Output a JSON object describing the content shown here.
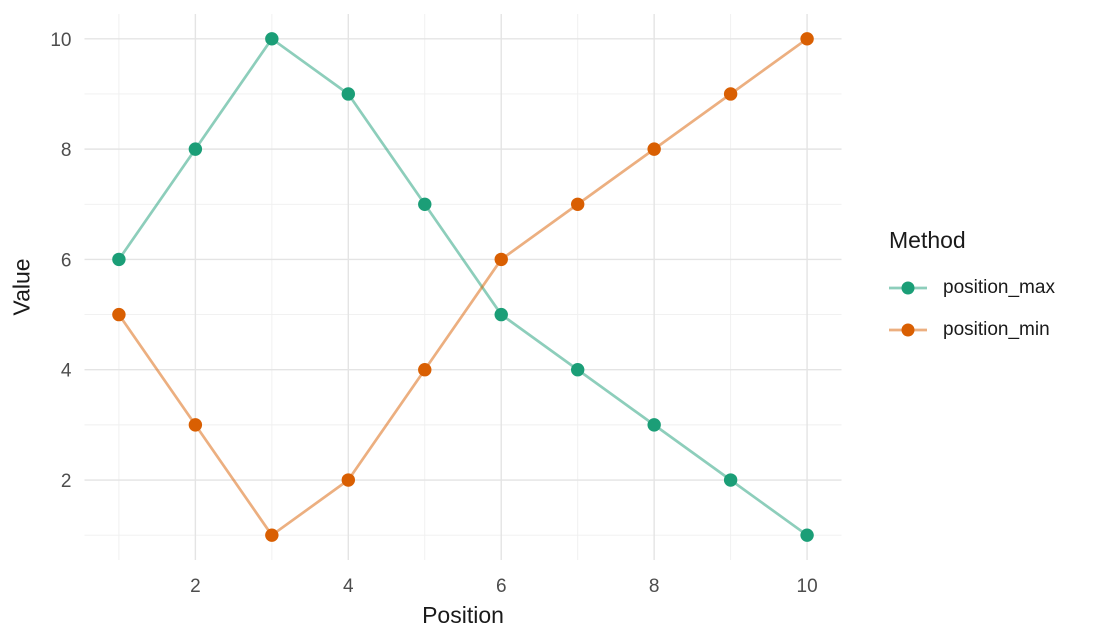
{
  "figure": {
    "background": "#ffffff"
  },
  "chart_data": {
    "type": "line",
    "title": "",
    "xlabel": "Position",
    "ylabel": "Value",
    "x": [
      1,
      2,
      3,
      4,
      5,
      6,
      7,
      8,
      9,
      10
    ],
    "series": [
      {
        "name": "position_max",
        "color": "#1B9E77",
        "values": [
          6,
          8,
          10,
          9,
          7,
          5,
          4,
          3,
          2,
          1
        ]
      },
      {
        "name": "position_min",
        "color": "#D95F02",
        "values": [
          5,
          3,
          1,
          2,
          4,
          6,
          7,
          8,
          9,
          10
        ]
      }
    ],
    "x_ticks": [
      2,
      4,
      6,
      8,
      10
    ],
    "y_ticks": [
      2,
      4,
      6,
      8,
      10
    ],
    "x_minor": [
      1,
      3,
      5,
      7,
      9
    ],
    "y_minor": [
      1,
      3,
      5,
      7,
      9
    ],
    "xlim": [
      0.55,
      10.45
    ],
    "ylim": [
      0.55,
      10.45
    ],
    "grid": true,
    "legend": {
      "title": "Method",
      "position": "right"
    },
    "style": {
      "grid_major_color": "#e4e4e4",
      "grid_minor_color": "#efefef",
      "tick_text_color": "#4d4d4d",
      "title_text_color": "#1a1a1a",
      "line_opacity": 0.5,
      "line_width": 2.7,
      "point_radius": 6.7
    }
  }
}
